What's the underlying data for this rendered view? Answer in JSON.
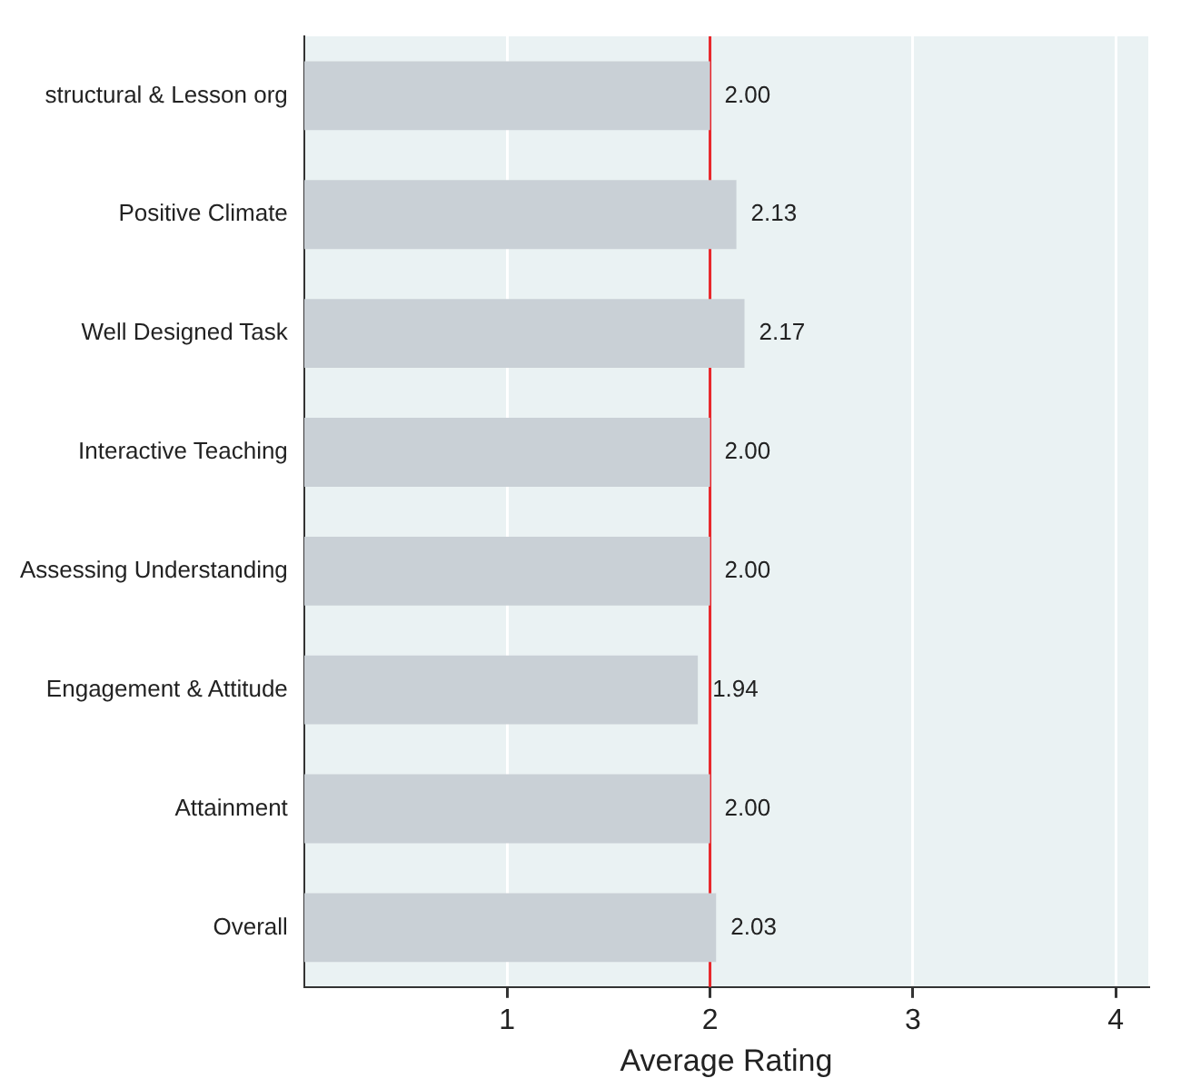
{
  "chart_data": {
    "type": "bar",
    "orientation": "horizontal",
    "xlabel": "Average Rating",
    "categories": [
      "structural & Lesson org",
      "Positive Climate",
      "Well Designed Task",
      "Interactive Teaching",
      "Assessing Understanding",
      "Engagement & Attitude",
      "Attainment",
      "Overall"
    ],
    "values": [
      2.0,
      2.13,
      2.17,
      2.0,
      2.0,
      1.94,
      2.0,
      2.03
    ],
    "value_labels": [
      "2.00",
      "2.13",
      "2.17",
      "2.00",
      "2.00",
      "1.94",
      "2.00",
      "2.03"
    ],
    "color": "#c9d0d6",
    "xlim": [
      0,
      4.16
    ],
    "xticks": [
      1,
      2,
      3,
      4
    ],
    "grid": "x",
    "legend": false,
    "ref_lines": [
      {
        "axis": "x",
        "value": 2,
        "color": "#e8262a"
      }
    ]
  }
}
